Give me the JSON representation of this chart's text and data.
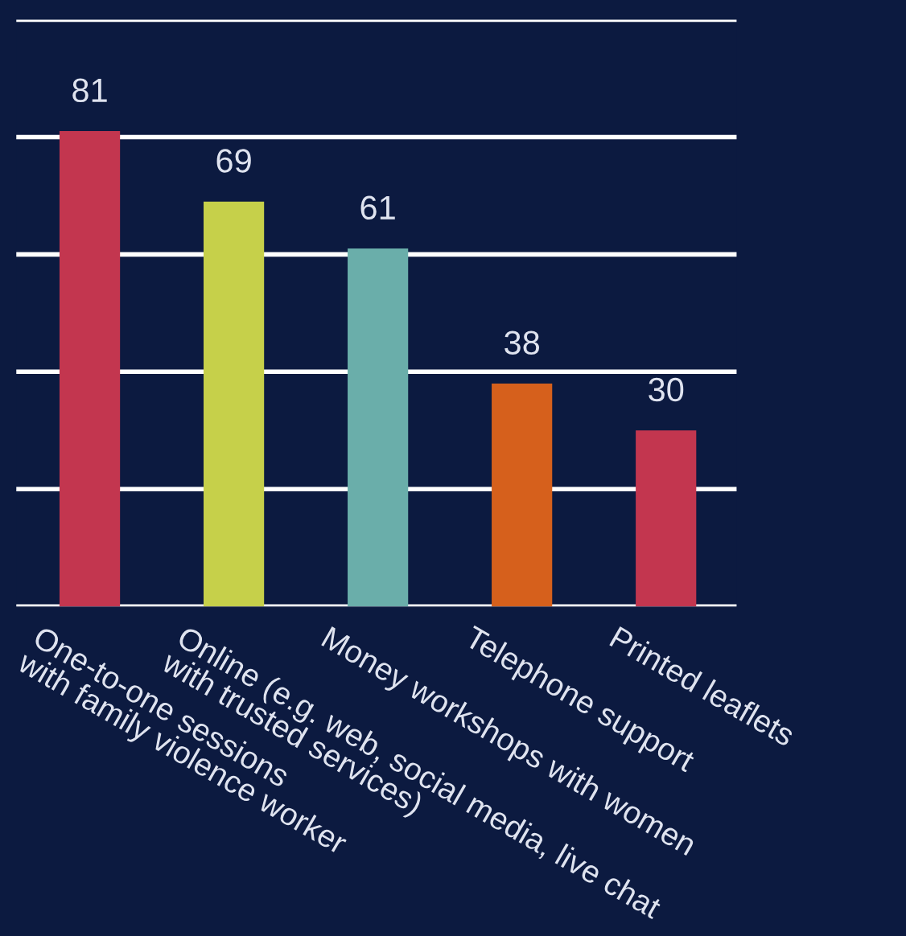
{
  "chart_data": {
    "type": "bar",
    "categories": [
      "One-to-one sessions\nwith family violence worker",
      "Online (e.g. web, social media, live chat\nwith trusted services)",
      "Money workshops with women",
      "Telephone support",
      "Printed leaflets"
    ],
    "values": [
      81,
      69,
      61,
      38,
      30
    ],
    "colors": [
      "#c3364f",
      "#c6d04a",
      "#6aaeaa",
      "#d6601c",
      "#c3364f"
    ],
    "ylim": [
      0,
      100
    ],
    "yticks": [
      {
        "value": 0,
        "label": null
      },
      {
        "value": 20,
        "label": null
      },
      {
        "value": 40,
        "label": null
      },
      {
        "value": 60,
        "label": null
      },
      {
        "value": 80,
        "label": null
      },
      {
        "value": 100,
        "label": null
      }
    ],
    "tick_labels": "x",
    "grid": "y",
    "data_labels": true,
    "legend": false
  }
}
